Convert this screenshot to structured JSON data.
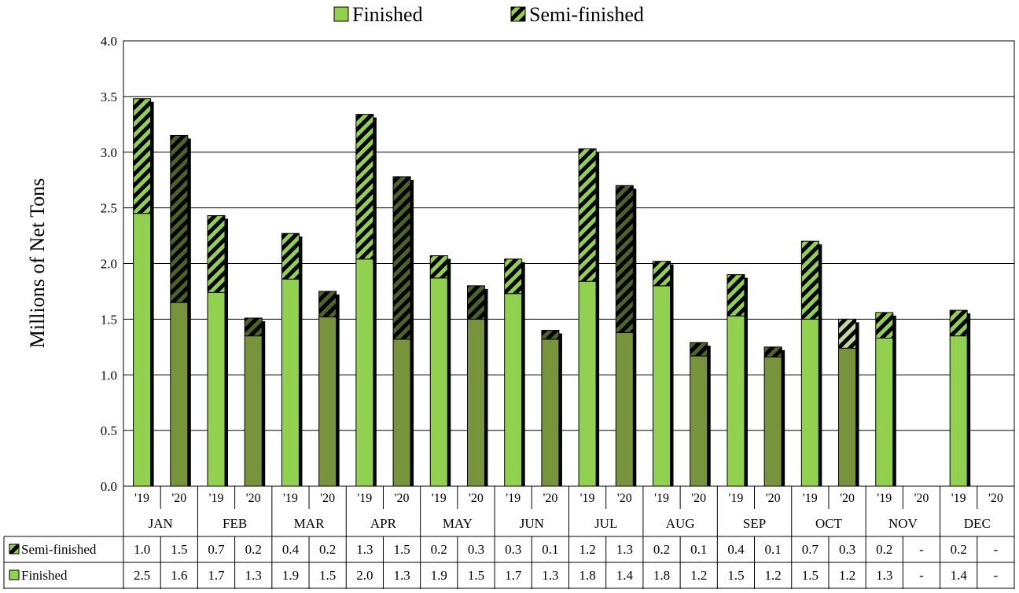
{
  "chart_data": {
    "type": "bar",
    "stacked": true,
    "ylabel": "Millions of Net Tons",
    "ylim": [
      0,
      4.0
    ],
    "yticks": [
      "0.0",
      "0.5",
      "1.0",
      "1.5",
      "2.0",
      "2.5",
      "3.0",
      "3.5",
      "4.0"
    ],
    "grid": true,
    "legend_position": "top",
    "months": [
      "JAN",
      "FEB",
      "MAR",
      "APR",
      "MAY",
      "JUN",
      "JUL",
      "AUG",
      "SEP",
      "OCT",
      "NOV",
      "DEC"
    ],
    "years": [
      "'19",
      "'20"
    ],
    "series": [
      {
        "name": "Finished",
        "values_2019": [
          2.45,
          1.74,
          1.86,
          2.04,
          1.87,
          1.73,
          1.84,
          1.8,
          1.53,
          1.5,
          1.33,
          1.35
        ],
        "values_2020": [
          1.65,
          1.35,
          1.52,
          1.32,
          1.5,
          1.32,
          1.38,
          1.17,
          1.16,
          1.24,
          null,
          null
        ]
      },
      {
        "name": "Semi-finished",
        "values_2019": [
          1.03,
          0.69,
          0.41,
          1.3,
          0.2,
          0.31,
          1.19,
          0.22,
          0.37,
          0.7,
          0.23,
          0.23
        ],
        "values_2020": [
          1.5,
          0.16,
          0.23,
          1.46,
          0.3,
          0.08,
          1.32,
          0.12,
          0.09,
          0.26,
          null,
          null
        ]
      }
    ],
    "table": {
      "rows": [
        {
          "label": "Semi-finished",
          "cells": [
            "1.0",
            "1.5",
            "0.7",
            "0.2",
            "0.4",
            "0.2",
            "1.3",
            "1.5",
            "0.2",
            "0.3",
            "0.3",
            "0.1",
            "1.2",
            "1.3",
            "0.2",
            "0.1",
            "0.4",
            "0.1",
            "0.7",
            "0.3",
            "0.2",
            "-",
            "0.2",
            "-"
          ]
        },
        {
          "label": "Finished",
          "cells": [
            "2.5",
            "1.6",
            "1.7",
            "1.3",
            "1.9",
            "1.5",
            "2.0",
            "1.3",
            "1.9",
            "1.5",
            "1.7",
            "1.3",
            "1.8",
            "1.4",
            "1.8",
            "1.2",
            "1.5",
            "1.2",
            "1.5",
            "1.2",
            "1.3",
            "-",
            "1.4",
            "-"
          ]
        }
      ]
    },
    "colors": {
      "finished_2019": "#92d050",
      "finished_2020": "#77933c",
      "semi_2019_stripe": "#92d050",
      "semi_2020_stripe": "#4f6228",
      "semi_oct_2020_stripe": "#c4d79b",
      "grid": "#000000"
    }
  }
}
